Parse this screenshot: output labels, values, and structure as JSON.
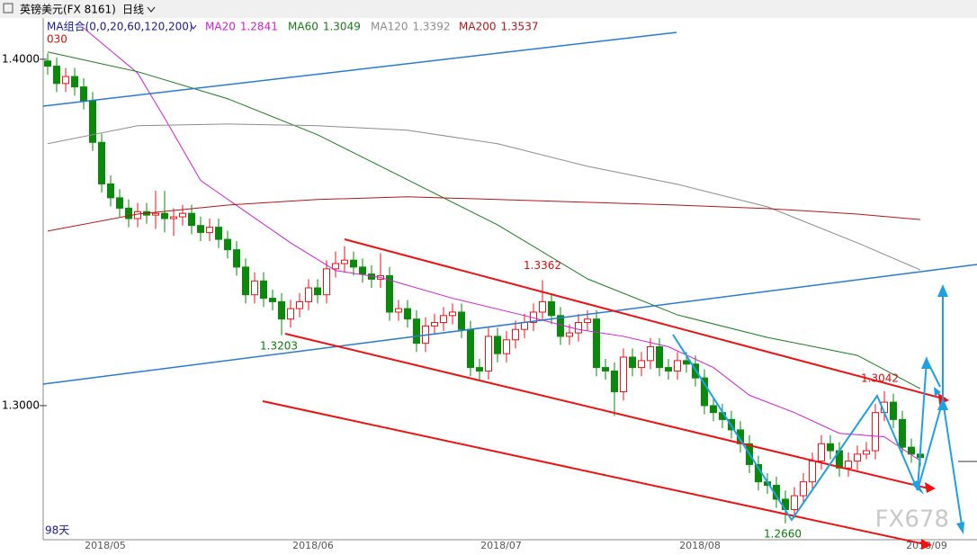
{
  "chart_data": {
    "type": "candlestick",
    "symbol": "英镑美元(FX 8161)",
    "period": "日线",
    "ma_group": "MA组合(0,0,20,60,120,200)",
    "corner_label": "030",
    "days_label": "98天",
    "watermark": "FX678",
    "ylim": [
      1.2613,
      1.4119
    ],
    "yticks": [
      {
        "value": 1.4,
        "label": "1.4000"
      },
      {
        "value": 1.3,
        "label": "1.3000"
      }
    ],
    "date_labels": [
      "2018/05",
      "2018/06",
      "2018/07",
      "2018/08",
      "2018/09"
    ],
    "up_color": "#e8141a",
    "down_color": "#0a8a0a",
    "candles": [
      [
        1.3995,
        1.4017,
        1.3955,
        1.398
      ],
      [
        1.398,
        1.4005,
        1.3905,
        1.393
      ],
      [
        1.393,
        1.3975,
        1.3905,
        1.395
      ],
      [
        1.395,
        1.3975,
        1.3895,
        1.392
      ],
      [
        1.392,
        1.3945,
        1.3855,
        1.388
      ],
      [
        1.388,
        1.3905,
        1.3735,
        1.376
      ],
      [
        1.376,
        1.3785,
        1.3615,
        1.364
      ],
      [
        1.364,
        1.3665,
        1.3575,
        1.36
      ],
      [
        1.36,
        1.3625,
        1.3545,
        1.357
      ],
      [
        1.357,
        1.3595,
        1.3515,
        1.354
      ],
      [
        1.354,
        1.3585,
        1.3515,
        1.356
      ],
      [
        1.356,
        1.3585,
        1.3525,
        1.355
      ],
      [
        1.355,
        1.362,
        1.351,
        1.3555
      ],
      [
        1.3555,
        1.362,
        1.35,
        1.354
      ],
      [
        1.354,
        1.357,
        1.349,
        1.3545
      ],
      [
        1.3545,
        1.358,
        1.352,
        1.3555
      ],
      [
        1.3555,
        1.358,
        1.3495,
        1.352
      ],
      [
        1.352,
        1.3545,
        1.3475,
        1.35
      ],
      [
        1.35,
        1.354,
        1.3475,
        1.3515
      ],
      [
        1.3515,
        1.354,
        1.3455,
        1.348
      ],
      [
        1.348,
        1.3505,
        1.3425,
        1.345
      ],
      [
        1.345,
        1.3475,
        1.3375,
        1.34
      ],
      [
        1.34,
        1.3425,
        1.3295,
        1.332
      ],
      [
        1.332,
        1.3385,
        1.3295,
        1.336
      ],
      [
        1.336,
        1.3385,
        1.3285,
        1.331
      ],
      [
        1.331,
        1.3335,
        1.3275,
        1.33
      ],
      [
        1.33,
        1.3325,
        1.3203,
        1.325
      ],
      [
        1.325,
        1.3305,
        1.3225,
        1.328
      ],
      [
        1.328,
        1.3325,
        1.3255,
        1.33
      ],
      [
        1.33,
        1.3365,
        1.3275,
        1.334
      ],
      [
        1.334,
        1.3365,
        1.3295,
        1.332
      ],
      [
        1.332,
        1.342,
        1.3295,
        1.3395
      ],
      [
        1.3395,
        1.3445,
        1.337,
        1.341
      ],
      [
        1.341,
        1.346,
        1.3385,
        1.342
      ],
      [
        1.342,
        1.3445,
        1.3375,
        1.34
      ],
      [
        1.34,
        1.3425,
        1.3355,
        1.338
      ],
      [
        1.338,
        1.3405,
        1.334,
        1.3365
      ],
      [
        1.3365,
        1.344,
        1.334,
        1.3375
      ],
      [
        1.3375,
        1.34,
        1.3245,
        1.327
      ],
      [
        1.327,
        1.3305,
        1.3245,
        1.328
      ],
      [
        1.328,
        1.3305,
        1.3225,
        1.325
      ],
      [
        1.325,
        1.3275,
        1.3155,
        1.318
      ],
      [
        1.318,
        1.3255,
        1.3155,
        1.323
      ],
      [
        1.323,
        1.3265,
        1.3205,
        1.324
      ],
      [
        1.324,
        1.3285,
        1.3215,
        1.326
      ],
      [
        1.326,
        1.3295,
        1.3235,
        1.327
      ],
      [
        1.327,
        1.3295,
        1.3195,
        1.322
      ],
      [
        1.322,
        1.3245,
        1.3085,
        1.311
      ],
      [
        1.311,
        1.3135,
        1.3075,
        1.31
      ],
      [
        1.31,
        1.3225,
        1.3075,
        1.32
      ],
      [
        1.32,
        1.3225,
        1.3125,
        1.315
      ],
      [
        1.315,
        1.3215,
        1.3125,
        1.319
      ],
      [
        1.319,
        1.3245,
        1.3165,
        1.322
      ],
      [
        1.322,
        1.3265,
        1.3195,
        1.324
      ],
      [
        1.324,
        1.3295,
        1.3215,
        1.327
      ],
      [
        1.327,
        1.3362,
        1.3245,
        1.33
      ],
      [
        1.33,
        1.3325,
        1.3235,
        1.326
      ],
      [
        1.326,
        1.3285,
        1.3175,
        1.32
      ],
      [
        1.32,
        1.3235,
        1.3175,
        1.321
      ],
      [
        1.321,
        1.3265,
        1.3185,
        1.324
      ],
      [
        1.324,
        1.3275,
        1.3215,
        1.325
      ],
      [
        1.325,
        1.3275,
        1.3085,
        1.311
      ],
      [
        1.311,
        1.3135,
        1.3075,
        1.31
      ],
      [
        1.31,
        1.3125,
        1.297,
        1.304
      ],
      [
        1.304,
        1.3165,
        1.3015,
        1.314
      ],
      [
        1.314,
        1.3165,
        1.3085,
        1.311
      ],
      [
        1.311,
        1.3155,
        1.3085,
        1.313
      ],
      [
        1.313,
        1.3195,
        1.3105,
        1.317
      ],
      [
        1.317,
        1.3195,
        1.3085,
        1.311
      ],
      [
        1.311,
        1.3135,
        1.3075,
        1.31
      ],
      [
        1.31,
        1.3155,
        1.3075,
        1.313
      ],
      [
        1.313,
        1.3155,
        1.3095,
        1.312
      ],
      [
        1.312,
        1.3145,
        1.3055,
        1.308
      ],
      [
        1.308,
        1.3105,
        1.2975,
        1.3
      ],
      [
        1.3,
        1.3025,
        1.2955,
        1.298
      ],
      [
        1.298,
        1.3005,
        1.2935,
        1.296
      ],
      [
        1.296,
        1.2985,
        1.2905,
        1.293
      ],
      [
        1.293,
        1.2955,
        1.2865,
        1.289
      ],
      [
        1.289,
        1.2915,
        1.2805,
        1.283
      ],
      [
        1.283,
        1.2855,
        1.2755,
        1.278
      ],
      [
        1.278,
        1.2805,
        1.2745,
        1.277
      ],
      [
        1.277,
        1.2795,
        1.2705,
        1.273
      ],
      [
        1.273,
        1.2755,
        1.266,
        1.27
      ],
      [
        1.27,
        1.2765,
        1.2675,
        1.274
      ],
      [
        1.274,
        1.2805,
        1.2715,
        1.278
      ],
      [
        1.278,
        1.2865,
        1.2755,
        1.284
      ],
      [
        1.284,
        1.2915,
        1.2815,
        1.289
      ],
      [
        1.289,
        1.2915,
        1.2845,
        1.287
      ],
      [
        1.287,
        1.2895,
        1.2795,
        1.282
      ],
      [
        1.282,
        1.2865,
        1.2795,
        1.284
      ],
      [
        1.284,
        1.2885,
        1.2815,
        1.286
      ],
      [
        1.286,
        1.2895,
        1.2845,
        1.287
      ],
      [
        1.287,
        1.3005,
        1.2845,
        1.298
      ],
      [
        1.298,
        1.3042,
        1.2955,
        1.301
      ],
      [
        1.301,
        1.3035,
        1.2935,
        1.296
      ],
      [
        1.296,
        1.2985,
        1.2855,
        1.288
      ],
      [
        1.288,
        1.2905,
        1.2835,
        1.286
      ],
      [
        1.286,
        1.2885,
        1.2825,
        1.285
      ]
    ],
    "series": [
      {
        "name": "MA20",
        "color": "#d020d0",
        "x": [
          4,
          10,
          13,
          17,
          22,
          27,
          32,
          37,
          45,
          53,
          59,
          64,
          69,
          74,
          78,
          83,
          88,
          93,
          97
        ],
        "values": [
          1.409,
          1.396,
          1.383,
          1.365,
          1.356,
          1.347,
          1.339,
          1.337,
          1.331,
          1.326,
          1.322,
          1.32,
          1.317,
          1.311,
          1.303,
          1.298,
          1.292,
          1.291,
          1.2841
        ]
      },
      {
        "name": "MA60",
        "color": "#1a7a1a",
        "x": [
          0,
          10,
          20,
          30,
          40,
          50,
          60,
          70,
          80,
          90,
          97
        ],
        "values": [
          1.4021,
          1.3964,
          1.3886,
          1.3782,
          1.3652,
          1.3522,
          1.3366,
          1.3262,
          1.3197,
          1.3145,
          1.3049
        ]
      },
      {
        "name": "MA120",
        "color": "#8c8c8c",
        "x": [
          0,
          10,
          20,
          30,
          40,
          50,
          60,
          70,
          80,
          90,
          97
        ],
        "values": [
          1.3756,
          1.3808,
          1.3813,
          1.3808,
          1.3795,
          1.3756,
          1.3691,
          1.3639,
          1.3574,
          1.347,
          1.3392
        ]
      },
      {
        "name": "MA200",
        "color": "#b01818",
        "x": [
          0,
          10,
          20,
          30,
          40,
          50,
          60,
          70,
          80,
          90,
          97
        ],
        "values": [
          1.3504,
          1.3553,
          1.3579,
          1.3595,
          1.3603,
          1.3595,
          1.3587,
          1.3579,
          1.3569,
          1.3553,
          1.3537
        ]
      }
    ],
    "annotations": [
      {
        "value": 1.3203,
        "label": "1.3203",
        "color": "#0a7a0a"
      },
      {
        "value": 1.3362,
        "label": "1.3362",
        "color": "#d01010"
      },
      {
        "value": 1.266,
        "label": "1.2660",
        "color": "#0a7a0a"
      },
      {
        "value": 1.3042,
        "label": "1.3042",
        "color": "#d01010"
      }
    ]
  }
}
